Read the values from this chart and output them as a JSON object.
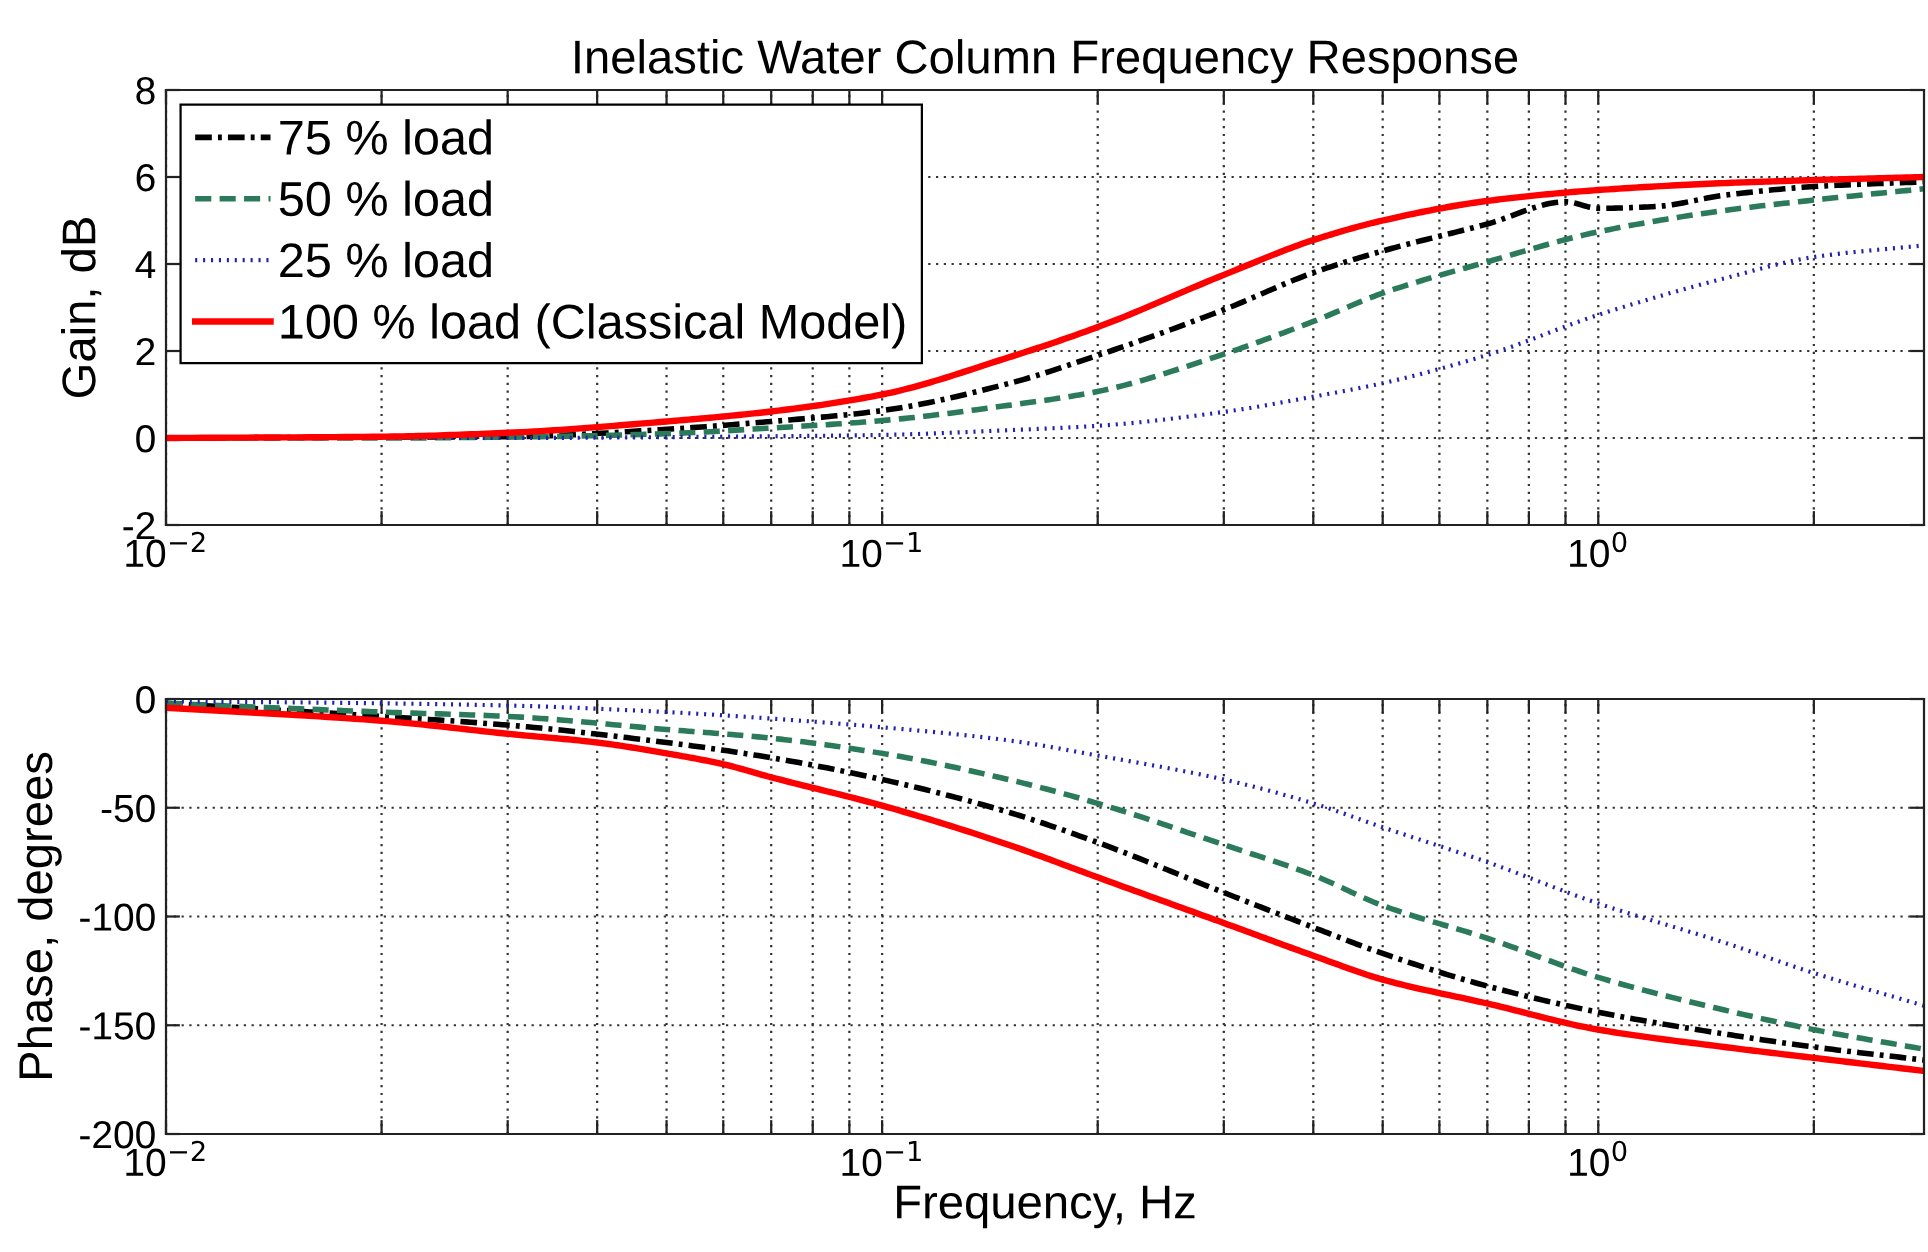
{
  "chart_data": [
    {
      "type": "line",
      "title": "Inelastic Water Column Frequency Response",
      "ylabel": "Gain, dB",
      "log": "x",
      "grid": true,
      "legend": "top left",
      "x": [
        0.01,
        0.02,
        0.03,
        0.05,
        0.07,
        0.1,
        0.15,
        0.2,
        0.3,
        0.4,
        0.5,
        0.7,
        1,
        1.5,
        2,
        2.85
      ],
      "xlim": [
        0.01,
        2.85
      ],
      "xticks": [
        {
          "value": 0.01,
          "label": "10$^{−2}$"
        },
        {
          "value": 0.02,
          "label": null
        },
        {
          "value": 0.03,
          "label": null
        },
        {
          "value": 0.04,
          "label": null
        },
        {
          "value": 0.05,
          "label": null
        },
        {
          "value": 0.06,
          "label": null
        },
        {
          "value": 0.07,
          "label": null
        },
        {
          "value": 0.08,
          "label": null
        },
        {
          "value": 0.09,
          "label": null
        },
        {
          "value": 0.1,
          "label": "10$^{−1}$"
        },
        {
          "value": 0.2,
          "label": null
        },
        {
          "value": 0.3,
          "label": null
        },
        {
          "value": 0.4,
          "label": null
        },
        {
          "value": 0.5,
          "label": null
        },
        {
          "value": 0.6,
          "label": null
        },
        {
          "value": 0.7,
          "label": null
        },
        {
          "value": 0.8,
          "label": null
        },
        {
          "value": 0.9,
          "label": null
        },
        {
          "value": 1,
          "label": "10$^{0}$"
        },
        {
          "value": 2,
          "label": null
        }
      ],
      "ylim": [
        -2,
        8
      ],
      "yticks": [
        -2,
        0,
        2,
        4,
        6,
        8
      ],
      "series": [
        {
          "name": "75 % load",
          "color": "#000000",
          "line_style": "dashdot",
          "x": [
            0.01,
            0.02,
            0.03,
            0.05,
            0.07,
            0.1,
            0.15,
            0.2,
            0.3,
            0.4,
            0.5,
            0.7,
            0.9,
            1,
            1.2,
            1.5,
            2,
            2.85
          ],
          "values": [
            0,
            0.02,
            0.03,
            0.2,
            0.38,
            0.63,
            1.25,
            1.9,
            2.95,
            3.8,
            4.3,
            4.92,
            5.43,
            5.28,
            5.32,
            5.58,
            5.78,
            5.89
          ]
        },
        {
          "name": "50 % load",
          "color": "#2b7b5b",
          "line_style": "dashed",
          "values": [
            0,
            0,
            0.02,
            0.1,
            0.23,
            0.4,
            0.75,
            1.07,
            1.93,
            2.68,
            3.33,
            4.05,
            4.74,
            5.23,
            5.47,
            5.73
          ]
        },
        {
          "name": "25 % load",
          "color": "#2222aa",
          "line_style": "dotted",
          "values": [
            0,
            0,
            0,
            0.02,
            0.04,
            0.07,
            0.18,
            0.28,
            0.6,
            0.95,
            1.26,
            1.91,
            2.83,
            3.67,
            4.16,
            4.43
          ]
        },
        {
          "name": "100 % load (Classical Model)",
          "color": "#ff0000",
          "line_style": "solid",
          "values": [
            0,
            0.03,
            0.12,
            0.38,
            0.61,
            1.0,
            1.85,
            2.55,
            3.75,
            4.55,
            5.0,
            5.45,
            5.7,
            5.86,
            5.93,
            6.0
          ]
        }
      ]
    },
    {
      "type": "line",
      "xlabel": "Frequency, Hz",
      "ylabel": "Phase, degrees",
      "log": "x",
      "grid": true,
      "x": [
        0.01,
        0.02,
        0.03,
        0.05,
        0.07,
        0.1,
        0.15,
        0.2,
        0.3,
        0.4,
        0.5,
        0.7,
        1,
        1.5,
        2,
        2.85
      ],
      "xlim": [
        0.01,
        2.85
      ],
      "xticks": [
        {
          "value": 0.01,
          "label": "10$^{−2}$"
        },
        {
          "value": 0.02,
          "label": null
        },
        {
          "value": 0.03,
          "label": null
        },
        {
          "value": 0.04,
          "label": null
        },
        {
          "value": 0.05,
          "label": null
        },
        {
          "value": 0.06,
          "label": null
        },
        {
          "value": 0.07,
          "label": null
        },
        {
          "value": 0.08,
          "label": null
        },
        {
          "value": 0.09,
          "label": null
        },
        {
          "value": 0.1,
          "label": "10$^{−1}$"
        },
        {
          "value": 0.2,
          "label": null
        },
        {
          "value": 0.3,
          "label": null
        },
        {
          "value": 0.4,
          "label": null
        },
        {
          "value": 0.5,
          "label": null
        },
        {
          "value": 0.6,
          "label": null
        },
        {
          "value": 0.7,
          "label": null
        },
        {
          "value": 0.8,
          "label": null
        },
        {
          "value": 0.9,
          "label": null
        },
        {
          "value": 1,
          "label": "10$^{0}$"
        },
        {
          "value": 2,
          "label": null
        }
      ],
      "ylim": [
        -200,
        0
      ],
      "yticks": [
        -200,
        -150,
        -100,
        -50,
        0
      ],
      "series": [
        {
          "color": "#000000",
          "line_style": "dashdot",
          "values": [
            -2,
            -8,
            -12,
            -20,
            -27,
            -37,
            -52,
            -66,
            -89,
            -105,
            -117,
            -132,
            -144,
            -154,
            -160,
            -166
          ]
        },
        {
          "color": "#2b7b5b",
          "line_style": "dashed",
          "values": [
            -2,
            -6,
            -8,
            -14,
            -18,
            -25,
            -37,
            -48,
            -67,
            -81,
            -95,
            -110,
            -128,
            -143,
            -152,
            -161
          ]
        },
        {
          "color": "#2222aa",
          "line_style": "dotted",
          "values": [
            -1,
            -2,
            -3,
            -6,
            -9,
            -13,
            -19,
            -26,
            -37,
            -48,
            -59,
            -75,
            -94,
            -112,
            -126,
            -141
          ]
        },
        {
          "color": "#ff0000",
          "line_style": "solid",
          "x": [
            0.01,
            0.02,
            0.03,
            0.04,
            0.05,
            0.06,
            0.07,
            0.1,
            0.15,
            0.2,
            0.3,
            0.4,
            0.5,
            0.7,
            1,
            1.5,
            2,
            2.85
          ],
          "values": [
            -4,
            -10,
            -16,
            -20,
            -25,
            -30,
            -36,
            -49,
            -67,
            -82,
            -103,
            -118,
            -129,
            -140,
            -152,
            -160,
            -165,
            -171
          ]
        }
      ]
    }
  ]
}
